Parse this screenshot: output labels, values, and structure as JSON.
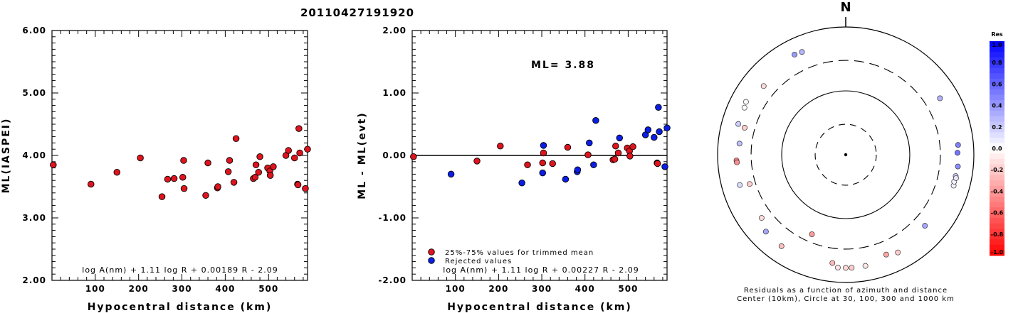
{
  "title": "20110427191920",
  "chart_data": [
    {
      "type": "scatter",
      "xlabel": "Hypocentral distance (km)",
      "ylabel": "ML(IASPEI)",
      "xlim": [
        0,
        590
      ],
      "ylim": [
        2.0,
        6.0
      ],
      "xticks": [
        "100",
        "200",
        "300",
        "400",
        "500"
      ],
      "yticks": [
        "2.00",
        "3.00",
        "4.00",
        "5.00",
        "6.00"
      ],
      "formula": "log A(nm) + 1.11 log R + 0.00189 R - 2.09",
      "marker_color": "#e0141e",
      "points": [
        [
          3,
          3.85
        ],
        [
          90,
          3.54
        ],
        [
          150,
          3.73
        ],
        [
          204,
          3.96
        ],
        [
          254,
          3.34
        ],
        [
          267,
          3.62
        ],
        [
          282,
          3.63
        ],
        [
          302,
          3.65
        ],
        [
          304,
          3.92
        ],
        [
          305,
          3.47
        ],
        [
          355,
          3.36
        ],
        [
          360,
          3.88
        ],
        [
          382,
          3.48
        ],
        [
          383,
          3.5
        ],
        [
          407,
          3.74
        ],
        [
          410,
          3.92
        ],
        [
          420,
          3.57
        ],
        [
          425,
          4.27
        ],
        [
          465,
          3.63
        ],
        [
          469,
          3.65
        ],
        [
          471,
          3.85
        ],
        [
          477,
          3.73
        ],
        [
          480,
          3.98
        ],
        [
          498,
          3.8
        ],
        [
          503,
          3.75
        ],
        [
          504,
          3.68
        ],
        [
          511,
          3.82
        ],
        [
          540,
          4.0
        ],
        [
          546,
          4.08
        ],
        [
          560,
          3.96
        ],
        [
          567,
          3.54
        ],
        [
          568,
          3.53
        ],
        [
          570,
          4.43
        ],
        [
          572,
          4.04
        ],
        [
          585,
          3.47
        ],
        [
          590,
          4.1
        ]
      ]
    },
    {
      "type": "scatter",
      "xlabel": "Hypocentral distance (km)",
      "ylabel": "ML - ML(evt)",
      "xlim": [
        0,
        590
      ],
      "ylim": [
        -2.0,
        2.0
      ],
      "xticks": [
        "100",
        "200",
        "300",
        "400",
        "500"
      ],
      "yticks": [
        "-2.00",
        "-1.00",
        "0.00",
        "1.00",
        "2.00"
      ],
      "annotation": "ML= 3.88",
      "formula": "log A(nm) + 1.11 log R + 0.00227 R - 2.09",
      "legend": [
        {
          "label": "25%-75% values for trimmed mean",
          "color": "#e0141e"
        },
        {
          "label": "Rejected values",
          "color": "#0a1ee6"
        }
      ],
      "series": [
        {
          "name": "25%-75% values for trimmed mean",
          "points": [
            [
              3,
              -0.02
            ],
            [
              150,
              -0.09
            ],
            [
              204,
              0.15
            ],
            [
              267,
              -0.15
            ],
            [
              302,
              -0.12
            ],
            [
              304,
              0.04
            ],
            [
              325,
              -0.13
            ],
            [
              360,
              0.13
            ],
            [
              407,
              0.01
            ],
            [
              465,
              -0.07
            ],
            [
              469,
              -0.06
            ],
            [
              471,
              0.15
            ],
            [
              477,
              0.04
            ],
            [
              498,
              0.12
            ],
            [
              503,
              0.07
            ],
            [
              504,
              -0.01
            ],
            [
              511,
              0.14
            ],
            [
              567,
              -0.12
            ],
            [
              568,
              -0.13
            ]
          ]
        },
        {
          "name": "Rejected values",
          "points": [
            [
              90,
              -0.3
            ],
            [
              254,
              -0.44
            ],
            [
              302,
              -0.28
            ],
            [
              304,
              0.16
            ],
            [
              355,
              -0.38
            ],
            [
              382,
              -0.26
            ],
            [
              383,
              -0.23
            ],
            [
              410,
              0.2
            ],
            [
              420,
              -0.15
            ],
            [
              425,
              0.56
            ],
            [
              480,
              0.28
            ],
            [
              540,
              0.33
            ],
            [
              546,
              0.41
            ],
            [
              560,
              0.29
            ],
            [
              570,
              0.77
            ],
            [
              572,
              0.38
            ],
            [
              585,
              -0.18
            ],
            [
              590,
              0.44
            ]
          ]
        }
      ]
    },
    {
      "type": "scatter",
      "subtype": "polar",
      "north_label": "N",
      "caption_line1": "Residuals as a function of azimuth and distance",
      "caption_line2": "Center (10km), Circle at 30, 100, 300 and 1000 km",
      "colorbar_title": "Res",
      "colorbar_ticks": [
        "1.0",
        "0.8",
        "0.6",
        "0.4",
        "0.2",
        "0.0",
        "-0.2",
        "-0.4",
        "-0.6",
        "-0.8",
        "-1.0"
      ],
      "colorbar_range": [
        -1.0,
        1.0
      ],
      "stations": [
        {
          "az": 337,
          "dist": 560,
          "res": 0.3
        },
        {
          "az": 333,
          "dist": 575,
          "res": 0.4
        },
        {
          "az": 310,
          "dist": 470,
          "res": -0.15
        },
        {
          "az": 298,
          "dist": 580,
          "res": -0.02
        },
        {
          "az": 295,
          "dist": 555,
          "res": -0.02
        },
        {
          "az": 286,
          "dist": 555,
          "res": 0.2
        },
        {
          "az": 285,
          "dist": 430,
          "res": -0.2
        },
        {
          "az": 276,
          "dist": 465,
          "res": 0.25
        },
        {
          "az": 267,
          "dist": 510,
          "res": -0.5
        },
        {
          "az": 266,
          "dist": 505,
          "res": -0.45
        },
        {
          "az": 254,
          "dist": 525,
          "res": 0.15
        },
        {
          "az": 253,
          "dist": 370,
          "res": -0.2
        },
        {
          "az": 233,
          "dist": 440,
          "res": -0.15
        },
        {
          "az": 226,
          "dist": 540,
          "res": 0.35
        },
        {
          "az": 215,
          "dist": 560,
          "res": -0.25
        },
        {
          "az": 203,
          "dist": 225,
          "res": -0.4
        },
        {
          "az": 187,
          "dist": 510,
          "res": -0.28
        },
        {
          "az": 184,
          "dist": 590,
          "res": -0.1
        },
        {
          "az": 180,
          "dist": 590,
          "res": -0.15
        },
        {
          "az": 177,
          "dist": 590,
          "res": -0.2
        },
        {
          "az": 170,
          "dist": 585,
          "res": -0.1
        },
        {
          "az": 158,
          "dist": 485,
          "res": -0.35
        },
        {
          "az": 152,
          "dist": 540,
          "res": -0.2
        },
        {
          "az": 132,
          "dist": 460,
          "res": 0.35
        },
        {
          "az": 106,
          "dist": 565,
          "res": 0.05
        },
        {
          "az": 104,
          "dist": 555,
          "res": 0.05
        },
        {
          "az": 101,
          "dist": 560,
          "res": 0.2
        },
        {
          "az": 102,
          "dist": 575,
          "res": 0.1
        },
        {
          "az": 96,
          "dist": 575,
          "res": 0.45
        },
        {
          "az": 89,
          "dist": 555,
          "res": 0.55
        },
        {
          "az": 85,
          "dist": 575,
          "res": 0.5
        },
        {
          "az": 59,
          "dist": 520,
          "res": 0.3
        }
      ]
    }
  ]
}
